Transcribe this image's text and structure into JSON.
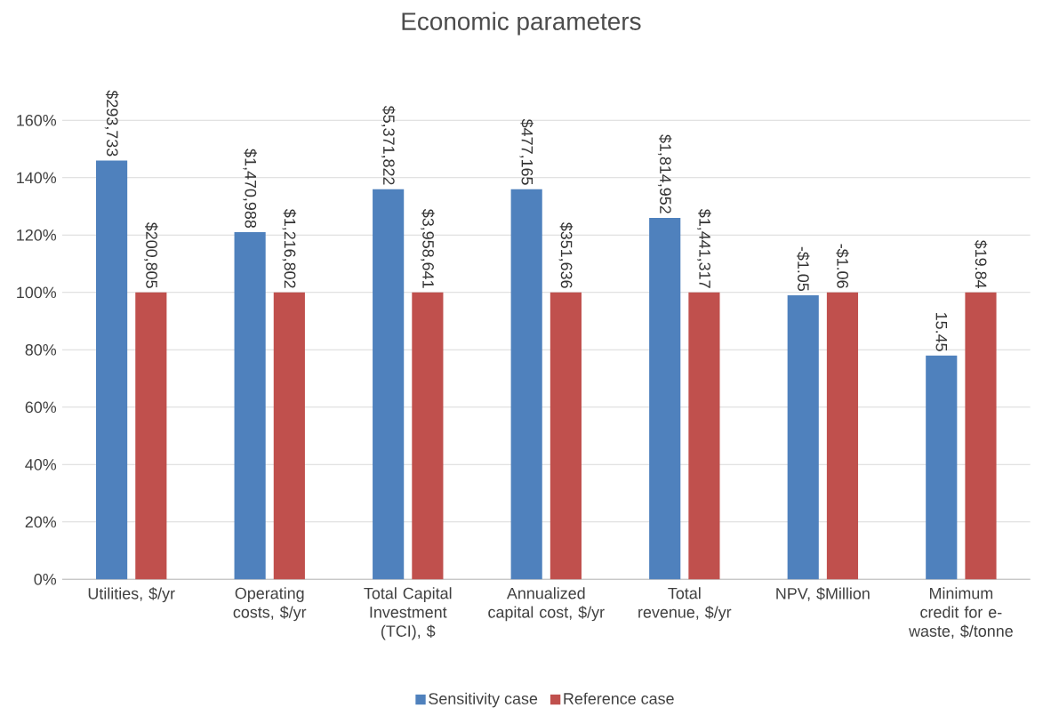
{
  "chart_data": {
    "type": "bar",
    "title": "Economic parameters",
    "categories": [
      "Utilities, $/yr",
      "Operating costs, $/yr",
      "Total Capital Investment (TCI), $",
      "Annualized capital cost, $/yr",
      "Total revenue, $/yr",
      "NPV, $Million",
      "Minimum credit for e-waste, $/tonne"
    ],
    "series": [
      {
        "name": "Sensitivity case",
        "color": "#4f81bd",
        "values": [
          146,
          121,
          136,
          136,
          126,
          99,
          78
        ]
      },
      {
        "name": "Reference case",
        "color": "#c0504d",
        "values": [
          100,
          100,
          100,
          100,
          100,
          100,
          100
        ]
      }
    ],
    "annotations": [
      "$293,733",
      "$1,470,988",
      "$5,371,822",
      "$477,165",
      "$1,814,952",
      "-$1.05",
      "15.45",
      "$200,805",
      "$1,216,802",
      "$3,958,641",
      "$351,636",
      "$1,441,317",
      "-$1.06",
      "$19.84"
    ],
    "ylim": [
      0,
      160
    ],
    "yticks": [
      {
        "value": 0,
        "label": "0%"
      },
      {
        "value": 20,
        "label": "20%"
      },
      {
        "value": 40,
        "label": "40%"
      },
      {
        "value": 60,
        "label": "60%"
      },
      {
        "value": 80,
        "label": "80%"
      },
      {
        "value": 100,
        "label": "100%"
      },
      {
        "value": 120,
        "label": "120%"
      },
      {
        "value": 140,
        "label": "140%"
      },
      {
        "value": 160,
        "label": "160%"
      }
    ],
    "grid": "y",
    "legend": "bottom"
  }
}
